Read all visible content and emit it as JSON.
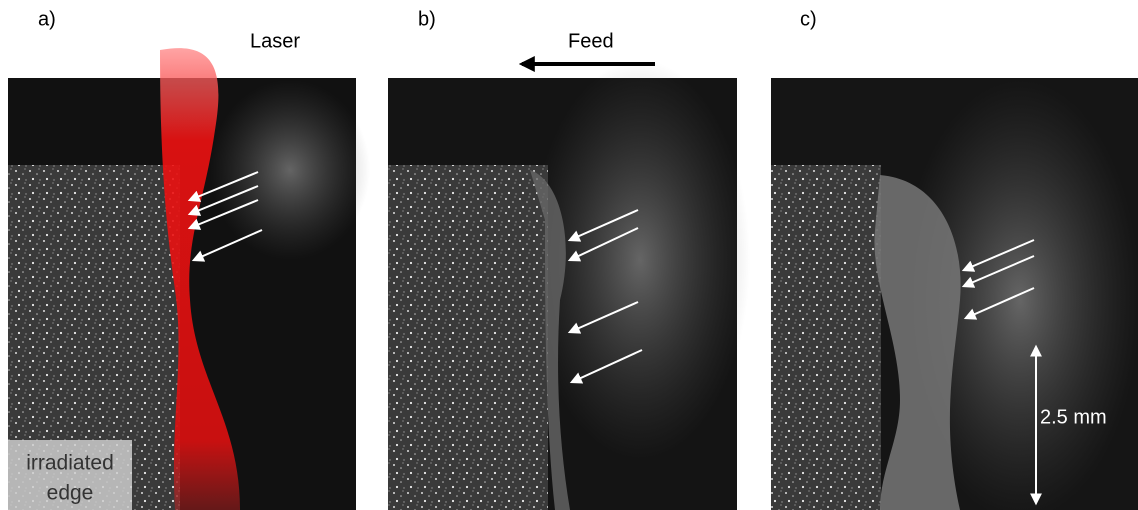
{
  "panels": [
    {
      "label": "a)",
      "caption": "Laser"
    },
    {
      "label": "b)",
      "caption": "Feed"
    },
    {
      "label": "c)",
      "caption": "2.5 mm"
    }
  ],
  "inset": {
    "lines": [
      "irradiated",
      "edge"
    ]
  }
}
